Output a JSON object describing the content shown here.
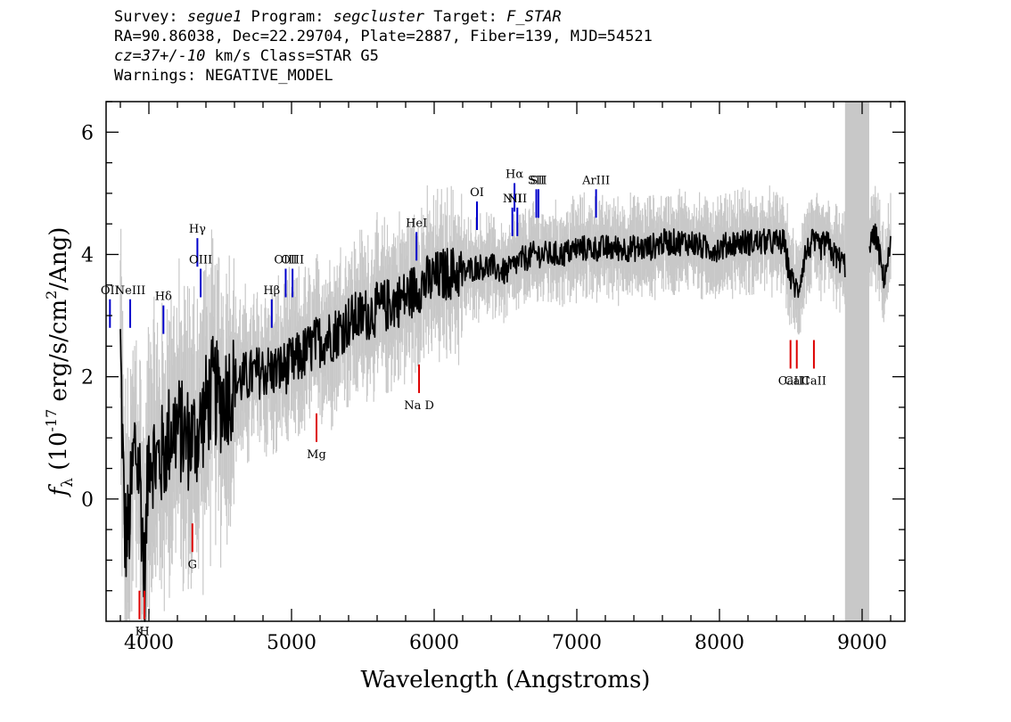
{
  "header": {
    "line1": {
      "survey_label": "Survey: ",
      "survey": "segue1",
      "program_label": " Program: ",
      "program": "segcluster",
      "target_label": " Target: ",
      "target": "F_STAR"
    },
    "line2": "RA=90.86038, Dec=22.29704, Plate=2887, Fiber=139, MJD=54521",
    "line3": {
      "cz": "cz=37+/-10",
      "rest": " km/s Class=STAR G5"
    },
    "line4": "Warnings: NEGATIVE_MODEL"
  },
  "chart_data": {
    "type": "line",
    "xlabel": "Wavelength (Angstroms)",
    "ylabel": "f_λ (10^-17 erg/s/cm^2/Ang)",
    "xlim": [
      3700,
      9300
    ],
    "ylim": [
      -2.0,
      6.5
    ],
    "xticks": [
      4000,
      5000,
      6000,
      7000,
      8000,
      9000
    ],
    "yticks": [
      0,
      2,
      4,
      6
    ],
    "colors": {
      "flux": "#000000",
      "error_band": "#c8c8c8",
      "emission": "#0000cc",
      "absorption": "#dd0000",
      "masked": "#c8c8c8"
    },
    "masked_region": [
      8880,
      9050
    ],
    "series": [
      {
        "role": "flux",
        "x": [
          3800,
          3830,
          3860,
          3900,
          3940,
          3970,
          4000,
          4050,
          4100,
          4150,
          4200,
          4250,
          4300,
          4350,
          4400,
          4450,
          4500,
          4600,
          4700,
          4800,
          4900,
          5000,
          5100,
          5200,
          5300,
          5400,
          5500,
          5600,
          5700,
          5800,
          5900,
          6000,
          6100,
          6200,
          6300,
          6400,
          6500,
          6600,
          6700,
          6800,
          6900,
          7000,
          7100,
          7200,
          7300,
          7400,
          7500,
          7600,
          7700,
          7800,
          7900,
          8000,
          8100,
          8200,
          8300,
          8400,
          8450,
          8500,
          8550,
          8600,
          8650,
          8700,
          8750,
          8800,
          8850,
          9000,
          9050,
          9100,
          9150,
          9200
        ],
        "y": [
          2.5,
          -0.6,
          -0.5,
          0.9,
          0.3,
          -1.4,
          0.9,
          0.6,
          0.7,
          1.1,
          1.2,
          1.0,
          1.0,
          1.1,
          1.5,
          1.8,
          1.6,
          1.9,
          2.0,
          2.1,
          2.1,
          2.2,
          2.4,
          2.6,
          2.7,
          2.9,
          3.0,
          3.1,
          3.2,
          3.3,
          3.5,
          3.6,
          3.7,
          3.7,
          3.8,
          3.8,
          3.7,
          3.9,
          4.0,
          4.0,
          4.0,
          4.1,
          4.1,
          4.1,
          4.1,
          4.1,
          4.1,
          4.2,
          4.2,
          4.2,
          4.1,
          4.1,
          4.2,
          4.2,
          4.2,
          4.2,
          4.2,
          3.6,
          3.4,
          4.0,
          4.2,
          4.1,
          4.2,
          4.0,
          3.9,
          3.5,
          4.2,
          4.3,
          3.6,
          4.1
        ]
      }
    ],
    "emission_lines": [
      {
        "label": "OII",
        "x": 3727,
        "y": 2.8
      },
      {
        "label": "NeIII",
        "x": 3869,
        "y": 2.8
      },
      {
        "label": "Hδ",
        "x": 4102,
        "y": 2.7
      },
      {
        "label": "Hγ",
        "x": 4340,
        "y": 3.8
      },
      {
        "label": "OIII",
        "x": 4363,
        "y": 3.3
      },
      {
        "label": "Hβ",
        "x": 4861,
        "y": 2.8
      },
      {
        "label": "OIII",
        "x": 4959,
        "y": 3.3
      },
      {
        "label": "OIII",
        "x": 5007,
        "y": 3.3
      },
      {
        "label": "HeI",
        "x": 5876,
        "y": 3.9
      },
      {
        "label": "OI",
        "x": 6300,
        "y": 4.4
      },
      {
        "label": "NII",
        "x": 6548,
        "y": 4.3
      },
      {
        "label": "Hα",
        "x": 6563,
        "y": 4.7
      },
      {
        "label": "NII",
        "x": 6583,
        "y": 4.3
      },
      {
        "label": "SII",
        "x": 6716,
        "y": 4.6
      },
      {
        "label": "SII",
        "x": 6731,
        "y": 4.6
      },
      {
        "label": "ArIII",
        "x": 7135,
        "y": 4.6
      }
    ],
    "absorption_lines": [
      {
        "label": "K",
        "x": 3934,
        "y": -1.5
      },
      {
        "label": "H",
        "x": 3969,
        "y": -1.5
      },
      {
        "label": "G",
        "x": 4305,
        "y": -0.4
      },
      {
        "label": "Mg",
        "x": 5175,
        "y": 1.4
      },
      {
        "label": "Na D",
        "x": 5894,
        "y": 2.2
      },
      {
        "label": "CaII",
        "x": 8498,
        "y": 2.6
      },
      {
        "label": "CaII",
        "x": 8542,
        "y": 2.6
      },
      {
        "label": "CaII",
        "x": 8662,
        "y": 2.6
      }
    ]
  }
}
